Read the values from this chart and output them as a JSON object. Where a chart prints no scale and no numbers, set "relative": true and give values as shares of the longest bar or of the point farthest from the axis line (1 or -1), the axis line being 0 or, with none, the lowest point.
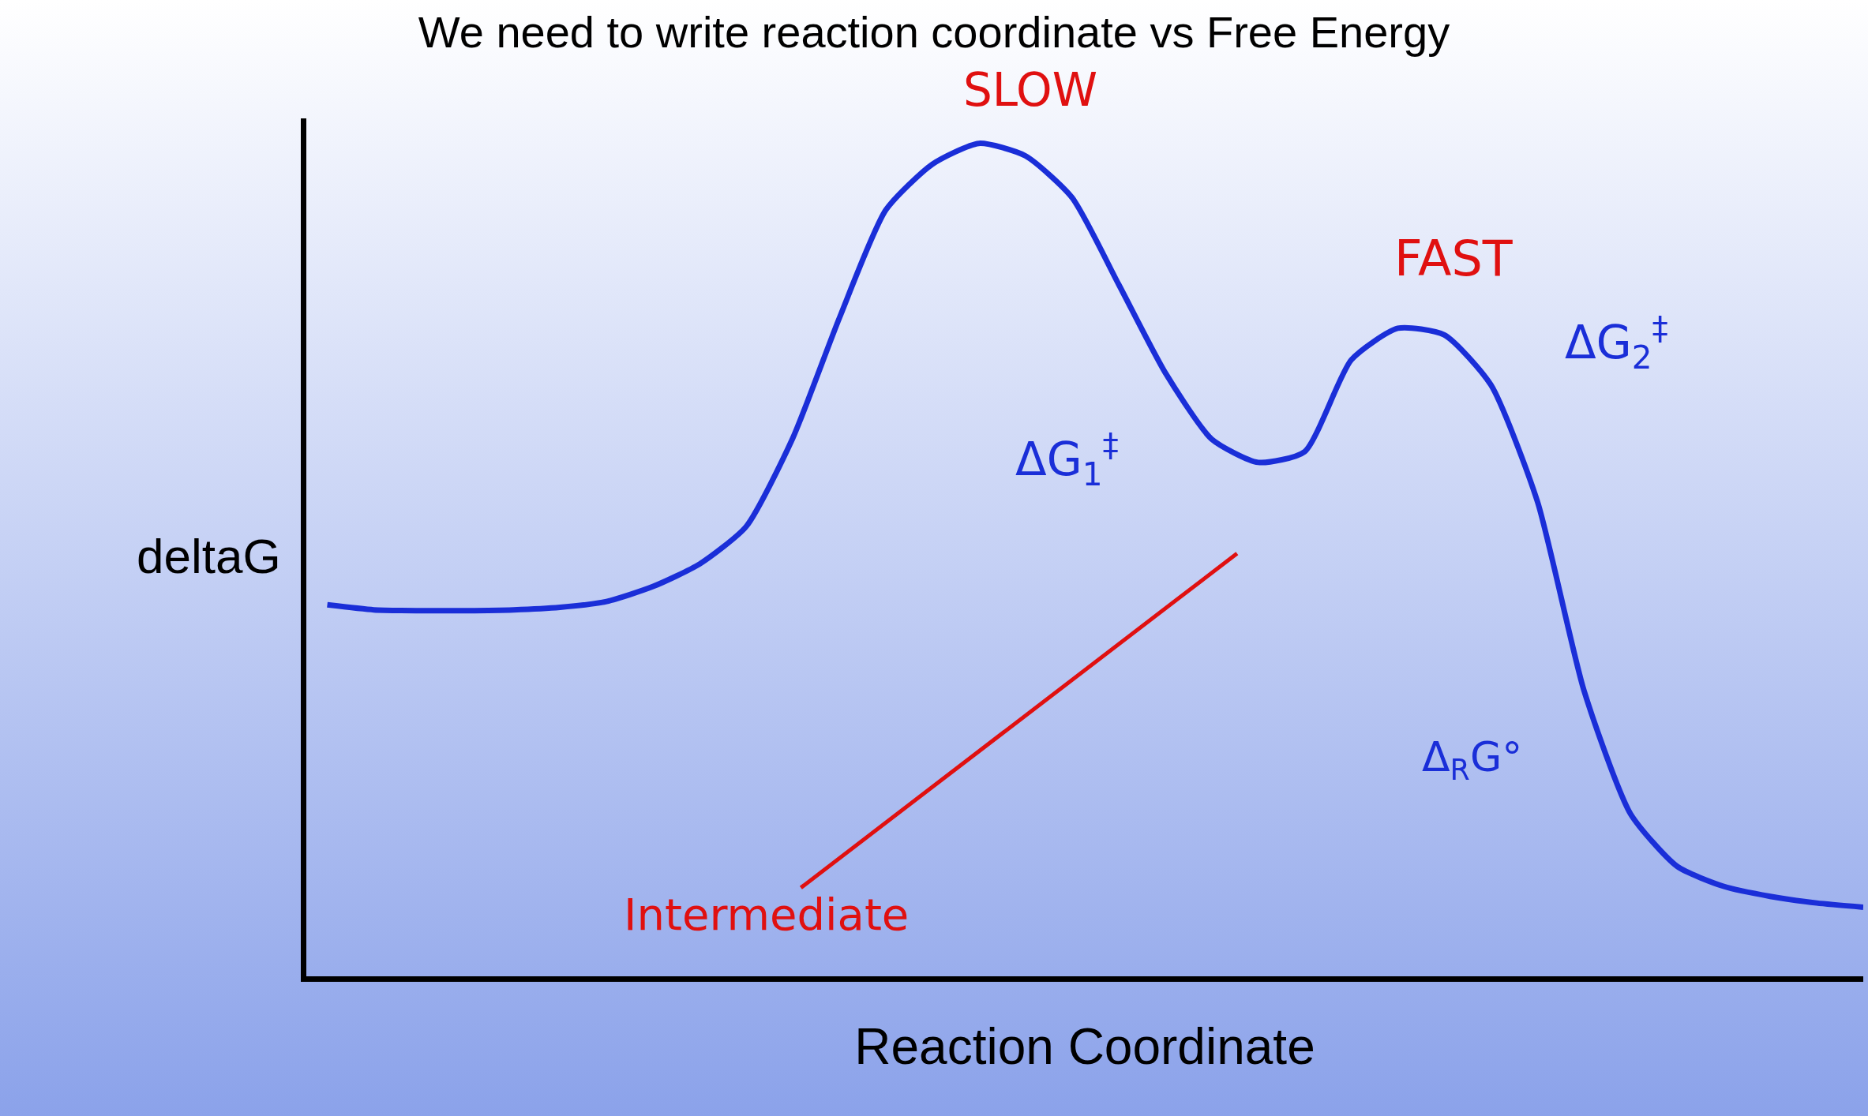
{
  "chart_data": {
    "type": "line",
    "relative": true,
    "title": "We need to write reaction coordinate vs Free Energy",
    "xlabel": "Reaction Coordinate",
    "ylabel": "deltaG",
    "categories": [
      null,
      null,
      null,
      null,
      null,
      null,
      null,
      null,
      null,
      null,
      null,
      null,
      null,
      null,
      null,
      null,
      null,
      null,
      null,
      null,
      null,
      null,
      null,
      null,
      null,
      null,
      null,
      null,
      null,
      null,
      null,
      null,
      null,
      null
    ],
    "series": [
      {
        "color": "#1a2ed8",
        "values": [
          0.446,
          0.44,
          0.439,
          0.439,
          0.44,
          0.443,
          0.45,
          0.468,
          0.495,
          0.54,
          0.646,
          0.79,
          0.92,
          0.975,
          1,
          0.985,
          0.935,
          0.831,
          0.725,
          0.645,
          0.617,
          0.63,
          0.74,
          0.778,
          0.77,
          0.71,
          0.57,
          0.343,
          0.195,
          0.132,
          0.108,
          0.096,
          0.088,
          0.083
        ]
      }
    ],
    "annotations": [
      "SLOW",
      "FAST",
      "ΔG$_{1}$$^{‡}$",
      "ΔG$_{2}$$^{‡}$",
      "Δ$_{R}$G°",
      "Intermediate"
    ]
  }
}
